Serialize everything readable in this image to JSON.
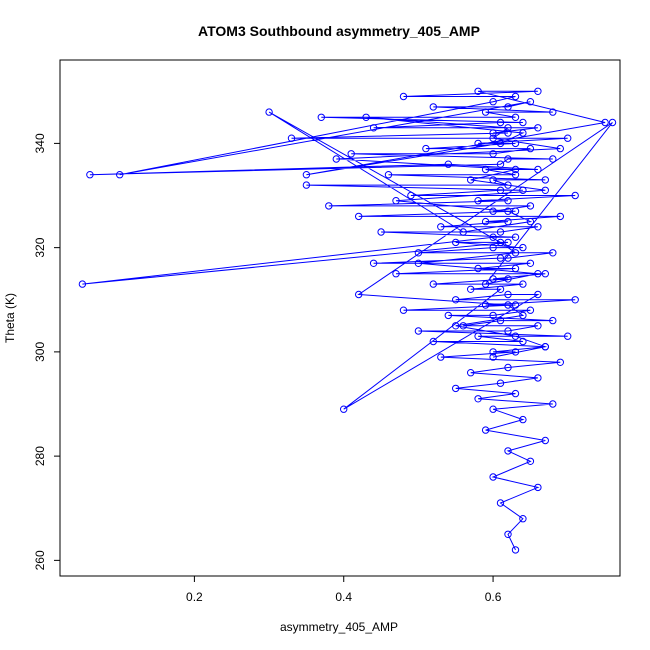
{
  "chart_data": {
    "type": "line",
    "title": "ATOM3 Southbound asymmetry_405_AMP",
    "xlabel": "asymmetry_405_AMP",
    "ylabel": "Theta (K)",
    "xlim": [
      0.02,
      0.77
    ],
    "ylim": [
      257,
      356
    ],
    "xticks": [
      0.2,
      0.4,
      0.6
    ],
    "xtick_labels": [
      "0.2",
      "0.4",
      "0.6"
    ],
    "yticks": [
      260,
      280,
      300,
      320,
      340
    ],
    "ytick_labels": [
      "260",
      "280",
      "300",
      "320",
      "340"
    ],
    "grid": false,
    "legend": "none",
    "marker": "open-circle",
    "color": "#0000ff",
    "series": [
      {
        "x": [
          0.63,
          0.62,
          0.64,
          0.61,
          0.66,
          0.6,
          0.65,
          0.62,
          0.67,
          0.59,
          0.64,
          0.6,
          0.68,
          0.58,
          0.63,
          0.55,
          0.61,
          0.66,
          0.57,
          0.62,
          0.69,
          0.53,
          0.63,
          0.6,
          0.67,
          0.52,
          0.64,
          0.58,
          0.7,
          0.5,
          0.62,
          0.66,
          0.56,
          0.61,
          0.68,
          0.54,
          0.6,
          0.65,
          0.48,
          0.63,
          0.59,
          0.71,
          0.55,
          0.62,
          0.66,
          0.4,
          0.61,
          0.57,
          0.64,
          0.52,
          0.62,
          0.6,
          0.67,
          0.47,
          0.63,
          0.58,
          0.65,
          0.44,
          0.61,
          0.62,
          0.68,
          0.5,
          0.6,
          0.64,
          0.55,
          0.62,
          0.05,
          0.6,
          0.63,
          0.45,
          0.61,
          0.66,
          0.53,
          0.62,
          0.59,
          0.69,
          0.42,
          0.63,
          0.6,
          0.65,
          0.38,
          0.62,
          0.58,
          0.71,
          0.49,
          0.61,
          0.64,
          0.35,
          0.62,
          0.6,
          0.67,
          0.46,
          0.63,
          0.59,
          0.66,
          0.54,
          0.06,
          0.61,
          0.62,
          0.68,
          0.41,
          0.6,
          0.65,
          0.51,
          0.63,
          0.58,
          0.7,
          0.33,
          0.62,
          0.6,
          0.66,
          0.44,
          0.61,
          0.64,
          0.37,
          0.63,
          0.59,
          0.68,
          0.52,
          0.62,
          0.65,
          0.1,
          0.6,
          0.63,
          0.48,
          0.66,
          0.58,
          0.75,
          0.35,
          0.61,
          0.64,
          0.43,
          0.62,
          0.6,
          0.69,
          0.39,
          0.63,
          0.57,
          0.67,
          0.47,
          0.62,
          0.65,
          0.56,
          0.3,
          0.61,
          0.63,
          0.5,
          0.66,
          0.59,
          0.76,
          0.42,
          0.62,
          0.64,
          0.55,
          0.63,
          0.67,
          0.6
        ],
        "y": [
          262,
          265,
          268,
          271,
          274,
          276,
          279,
          281,
          283,
          285,
          287,
          289,
          290,
          291,
          292,
          293,
          294,
          295,
          296,
          297,
          298,
          299,
          300,
          300,
          301,
          302,
          302,
          303,
          303,
          304,
          304,
          305,
          305,
          306,
          306,
          307,
          307,
          308,
          308,
          309,
          309,
          310,
          310,
          311,
          311,
          289,
          312,
          312,
          313,
          313,
          314,
          314,
          315,
          315,
          316,
          316,
          317,
          317,
          318,
          318,
          319,
          319,
          320,
          320,
          321,
          321,
          313,
          322,
          322,
          323,
          323,
          324,
          324,
          325,
          325,
          326,
          326,
          327,
          327,
          328,
          328,
          329,
          329,
          330,
          330,
          331,
          331,
          332,
          332,
          333,
          333,
          334,
          334,
          335,
          335,
          336,
          334,
          336,
          337,
          337,
          338,
          338,
          339,
          339,
          340,
          340,
          341,
          341,
          342,
          342,
          343,
          343,
          344,
          344,
          345,
          345,
          346,
          346,
          347,
          347,
          348,
          334,
          348,
          349,
          349,
          350,
          350,
          344,
          334,
          340,
          342,
          345,
          343,
          341,
          339,
          337,
          335,
          333,
          331,
          329,
          327,
          325,
          323,
          346,
          321,
          319,
          317,
          315,
          313,
          344,
          311,
          309,
          307,
          305,
          303,
          301,
          299
        ]
      }
    ]
  }
}
